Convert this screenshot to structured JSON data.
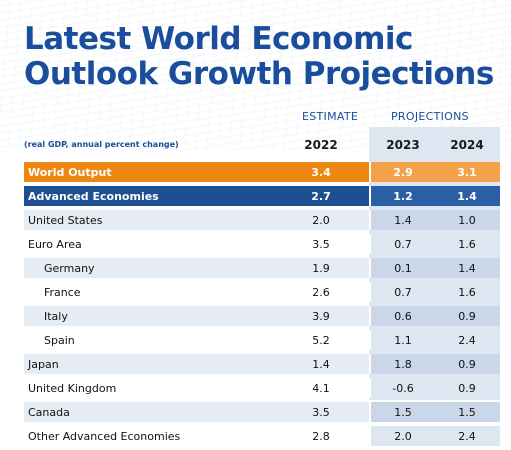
{
  "title_line1": "Latest World Economic",
  "title_line2": "Outlook Growth Projections",
  "header": {
    "estimate": "ESTIMATE",
    "projections": "PROJECTIONS",
    "note": "(real GDP, annual percent change)",
    "years": [
      "2022",
      "2023",
      "2024"
    ]
  },
  "rows": [
    {
      "name": "World Output",
      "v": [
        "3.4",
        "2.9",
        "3.1"
      ]
    },
    {
      "name": "Advanced Economies",
      "v": [
        "2.7",
        "1.2",
        "1.4"
      ]
    },
    {
      "name": "United States",
      "v": [
        "2.0",
        "1.4",
        "1.0"
      ]
    },
    {
      "name": "Euro Area",
      "v": [
        "3.5",
        "0.7",
        "1.6"
      ]
    },
    {
      "name": "Germany",
      "v": [
        "1.9",
        "0.1",
        "1.4"
      ]
    },
    {
      "name": "France",
      "v": [
        "2.6",
        "0.7",
        "1.6"
      ]
    },
    {
      "name": "Italy",
      "v": [
        "3.9",
        "0.6",
        "0.9"
      ]
    },
    {
      "name": "Spain",
      "v": [
        "5.2",
        "1.1",
        "2.4"
      ]
    },
    {
      "name": "Japan",
      "v": [
        "1.4",
        "1.8",
        "0.9"
      ]
    },
    {
      "name": "United Kingdom",
      "v": [
        "4.1",
        "-0.6",
        "0.9"
      ]
    },
    {
      "name": "Canada",
      "v": [
        "3.5",
        "1.5",
        "1.5"
      ]
    },
    {
      "name": "Other Advanced Economies",
      "v": [
        "2.8",
        "2.0",
        "2.4"
      ]
    }
  ],
  "colors": {
    "title": "#1a4d9c",
    "world_output_row": "#ee8712",
    "advanced_economies_row": "#1d4f91"
  }
}
